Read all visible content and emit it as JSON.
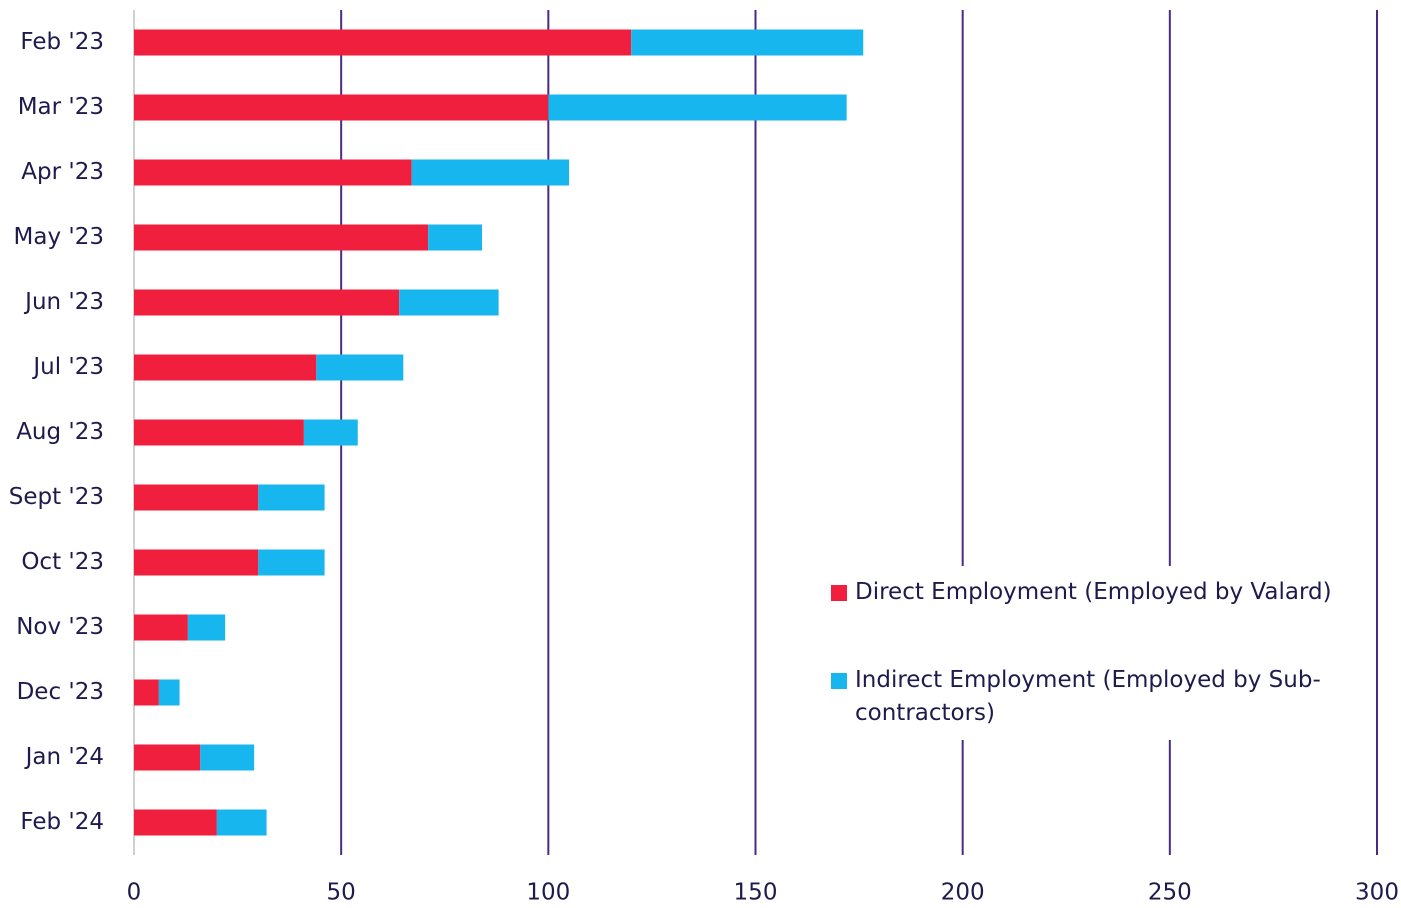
{
  "chart_data": {
    "type": "stacked-bar-horizontal",
    "categories": [
      "Feb '23",
      "Mar '23",
      "Apr '23",
      "May '23",
      "Jun '23",
      "Jul '23",
      "Aug '23",
      "Sept '23",
      "Oct '23",
      "Nov '23",
      "Dec '23",
      "Jan '24",
      "Feb '24"
    ],
    "series": [
      {
        "name": "Direct Employment (Employed by Valard)",
        "color": "#ef1f3d",
        "values": [
          120,
          100,
          67,
          71,
          64,
          44,
          41,
          30,
          30,
          13,
          6,
          16,
          20
        ]
      },
      {
        "name": "Indirect Employment (Employed by Sub-contractors)",
        "color": "#18b6ee",
        "values": [
          56,
          72,
          38,
          13,
          24,
          21,
          13,
          16,
          16,
          9,
          5,
          13,
          12
        ]
      }
    ],
    "xlim": [
      0,
      300
    ],
    "xticks": [
      0,
      50,
      100,
      150,
      200,
      250,
      300
    ],
    "grid": true,
    "legend": "right"
  }
}
